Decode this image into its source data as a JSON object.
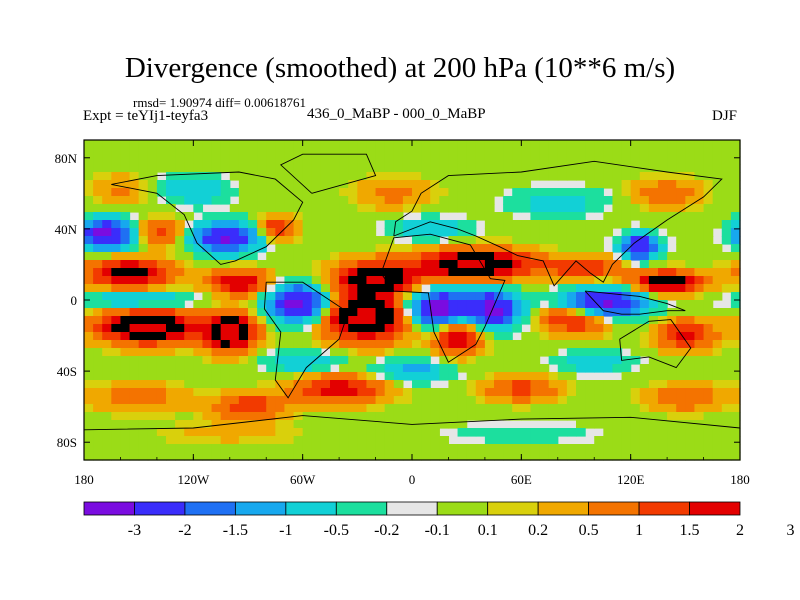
{
  "header": {
    "title": "Divergence (smoothed) at 200 hPa (10**6 m/s)",
    "stats": "rmsd= 1.90974 diff= 0.00618761",
    "experiment_id": "Expt = teYIj1-teyfa3",
    "comparison": "436_0_MaBP - 000_0_MaBP",
    "season": "DJF"
  },
  "chart_data": {
    "type": "heatmap",
    "title": "Divergence (smoothed) at 200 hPa (10**6 m/s)",
    "xlabel": "",
    "ylabel": "",
    "xlim": [
      -180,
      180
    ],
    "ylim": [
      -90,
      90
    ],
    "x_ticks": [
      {
        "value": -180,
        "label": "180"
      },
      {
        "value": -120,
        "label": "120W"
      },
      {
        "value": -60,
        "label": "60W"
      },
      {
        "value": 0,
        "label": "0"
      },
      {
        "value": 60,
        "label": "60E"
      },
      {
        "value": 120,
        "label": "120E"
      },
      {
        "value": 180,
        "label": "180"
      }
    ],
    "y_ticks": [
      {
        "value": 80,
        "label": "80N"
      },
      {
        "value": 40,
        "label": "40N"
      },
      {
        "value": 0,
        "label": "0"
      },
      {
        "value": -40,
        "label": "40S"
      },
      {
        "value": -80,
        "label": "80S"
      }
    ],
    "colorbar": {
      "colors": [
        "#7a0ce0",
        "#3a2dfb",
        "#1f70f3",
        "#17a8ee",
        "#12d0d6",
        "#1cdf9e",
        "#e6e6e6",
        "#9bdc17",
        "#d9d00c",
        "#f0a800",
        "#f47300",
        "#f23a00",
        "#e30000"
      ],
      "labels": [
        "-3",
        "-2",
        "-1.5",
        "-1",
        "-0.5",
        "-0.2",
        "-0.1",
        "0.1",
        "0.2",
        "0.5",
        "1",
        "1.5",
        "2",
        "3"
      ],
      "levels": [
        -3,
        -2,
        -1.5,
        -1,
        -0.5,
        -0.2,
        -0.1,
        0.1,
        0.2,
        0.5,
        1,
        1.5,
        2,
        3
      ]
    },
    "features": [
      {
        "lon": -168,
        "lat": 37,
        "lon_radius": 14,
        "lat_radius": 8,
        "value": -3.5
      },
      {
        "lon": -102,
        "lat": 35,
        "lon_radius": 18,
        "lat_radius": 8,
        "value": -3.2
      },
      {
        "lon": -138,
        "lat": 38,
        "lon_radius": 14,
        "lat_radius": 7,
        "value": 1.2
      },
      {
        "lon": -75,
        "lat": 40,
        "lon_radius": 10,
        "lat_radius": 7,
        "value": 1.5
      },
      {
        "lon": -155,
        "lat": 15,
        "lon_radius": 22,
        "lat_radius": 8,
        "value": 2.5
      },
      {
        "lon": -95,
        "lat": 10,
        "lon_radius": 16,
        "lat_radius": 7,
        "value": 2.0
      },
      {
        "lon": -20,
        "lat": 12,
        "lon_radius": 22,
        "lat_radius": 9,
        "value": 3.0
      },
      {
        "lon": 35,
        "lat": 20,
        "lon_radius": 30,
        "lat_radius": 8,
        "value": 3.2
      },
      {
        "lon": 95,
        "lat": 18,
        "lon_radius": 20,
        "lat_radius": 6,
        "value": 1.5
      },
      {
        "lon": 140,
        "lat": 10,
        "lon_radius": 18,
        "lat_radius": 6,
        "value": 2.8
      },
      {
        "lon": -145,
        "lat": -15,
        "lon_radius": 25,
        "lat_radius": 9,
        "value": 3.4
      },
      {
        "lon": -100,
        "lat": -18,
        "lon_radius": 14,
        "lat_radius": 10,
        "value": 3.2
      },
      {
        "lon": -25,
        "lat": -10,
        "lon_radius": 22,
        "lat_radius": 12,
        "value": 3.5
      },
      {
        "lon": 25,
        "lat": -20,
        "lon_radius": 12,
        "lat_radius": 10,
        "value": 2.2
      },
      {
        "lon": 90,
        "lat": -10,
        "lon_radius": 18,
        "lat_radius": 8,
        "value": 2.0
      },
      {
        "lon": 150,
        "lat": -20,
        "lon_radius": 15,
        "lat_radius": 8,
        "value": 1.8
      },
      {
        "lon": -62,
        "lat": -2,
        "lon_radius": 16,
        "lat_radius": 10,
        "value": -3.5
      },
      {
        "lon": 15,
        "lat": -5,
        "lon_radius": 18,
        "lat_radius": 10,
        "value": -3.6
      },
      {
        "lon": 45,
        "lat": -5,
        "lon_radius": 14,
        "lat_radius": 10,
        "value": -3.2
      },
      {
        "lon": 105,
        "lat": -2,
        "lon_radius": 22,
        "lat_radius": 8,
        "value": -3.4
      },
      {
        "lon": 125,
        "lat": 30,
        "lon_radius": 10,
        "lat_radius": 7,
        "value": -3.0
      },
      {
        "lon": -150,
        "lat": 0,
        "lon_radius": 30,
        "lat_radius": 5,
        "value": -1.2
      },
      {
        "lon": -150,
        "lat": -55,
        "lon_radius": 25,
        "lat_radius": 8,
        "value": 0.8
      },
      {
        "lon": -90,
        "lat": -60,
        "lon_radius": 18,
        "lat_radius": 7,
        "value": 1.5
      },
      {
        "lon": -40,
        "lat": -50,
        "lon_radius": 25,
        "lat_radius": 8,
        "value": 1.8
      },
      {
        "lon": 60,
        "lat": -50,
        "lon_radius": 20,
        "lat_radius": 7,
        "value": 1.2
      },
      {
        "lon": 150,
        "lat": -55,
        "lon_radius": 20,
        "lat_radius": 7,
        "value": 1.0
      },
      {
        "lon": -60,
        "lat": -35,
        "lon_radius": 20,
        "lat_radius": 6,
        "value": -1.0
      },
      {
        "lon": 0,
        "lat": -40,
        "lon_radius": 20,
        "lat_radius": 6,
        "value": -1.3
      },
      {
        "lon": 100,
        "lat": -35,
        "lon_radius": 20,
        "lat_radius": 6,
        "value": -0.8
      },
      {
        "lon": -120,
        "lat": 62,
        "lon_radius": 18,
        "lat_radius": 8,
        "value": -1.0
      },
      {
        "lon": -10,
        "lat": 60,
        "lon_radius": 20,
        "lat_radius": 8,
        "value": 0.7
      },
      {
        "lon": 80,
        "lat": 55,
        "lon_radius": 25,
        "lat_radius": 8,
        "value": -0.8
      },
      {
        "lon": 140,
        "lat": 60,
        "lon_radius": 18,
        "lat_radius": 8,
        "value": 0.9
      },
      {
        "lon": 10,
        "lat": 40,
        "lon_radius": 20,
        "lat_radius": 6,
        "value": -1.0
      },
      {
        "lon": -160,
        "lat": 62,
        "lon_radius": 15,
        "lat_radius": 8,
        "value": 0.6
      },
      {
        "lon": 60,
        "lat": -75,
        "lon_radius": 40,
        "lat_radius": 6,
        "value": -0.4
      },
      {
        "lon": -100,
        "lat": -75,
        "lon_radius": 40,
        "lat_radius": 6,
        "value": 0.3
      }
    ]
  }
}
